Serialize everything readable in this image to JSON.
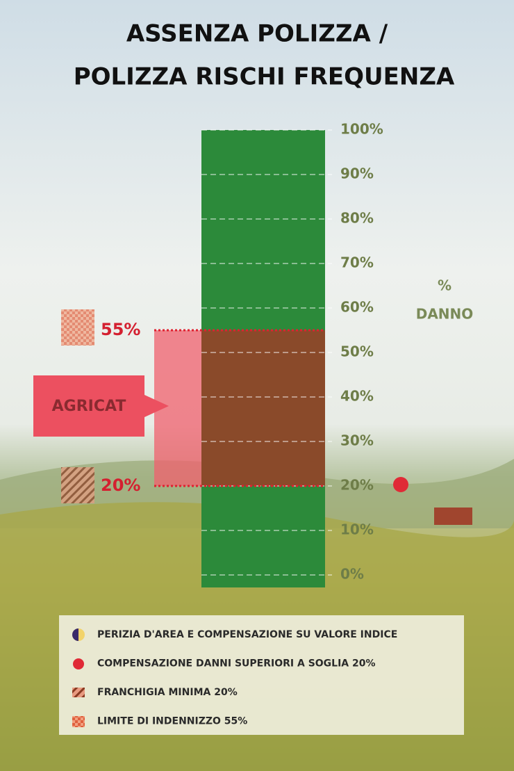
{
  "chart_data": {
    "type": "bar",
    "title": [
      "ASSENZA POLIZZA /",
      "POLIZZA RISCHI FREQUENZA"
    ],
    "ylabel": [
      "%",
      "DANNO"
    ],
    "ylim": [
      0,
      100
    ],
    "yticks": [
      {
        "value": 0,
        "label": "0%"
      },
      {
        "value": 10,
        "label": "10%"
      },
      {
        "value": 20,
        "label": "20%"
      },
      {
        "value": 30,
        "label": "30%"
      },
      {
        "value": 40,
        "label": "40%"
      },
      {
        "value": 50,
        "label": "50%"
      },
      {
        "value": 60,
        "label": "60%"
      },
      {
        "value": 70,
        "label": "70%"
      },
      {
        "value": 80,
        "label": "80%"
      },
      {
        "value": 90,
        "label": "90%"
      },
      {
        "value": 100,
        "label": "100%"
      }
    ],
    "grid": true,
    "series": [
      {
        "color": "#2c8a3a",
        "values": [
          20
        ]
      },
      {
        "color": "#8a4a2a",
        "values": [
          35
        ]
      },
      {
        "color": "#2c8a3a",
        "values": [
          45
        ]
      }
    ],
    "thresholds": [
      {
        "value": 55,
        "label": "55%"
      },
      {
        "value": 20,
        "label": "20%"
      }
    ],
    "annotation": "AGRICAT",
    "marker": {
      "value": 20,
      "color": "#e02a36"
    },
    "legend": [
      "PERIZIA D'AREA E COMPENSAZIONE SU VALORE INDICE",
      "COMPENSAZIONE DANNI SUPERIORI A SOGLIA 20%",
      "FRANCHIGIA MINIMA 20%",
      "LIMITE DI INDENNIZZO 55%"
    ]
  }
}
